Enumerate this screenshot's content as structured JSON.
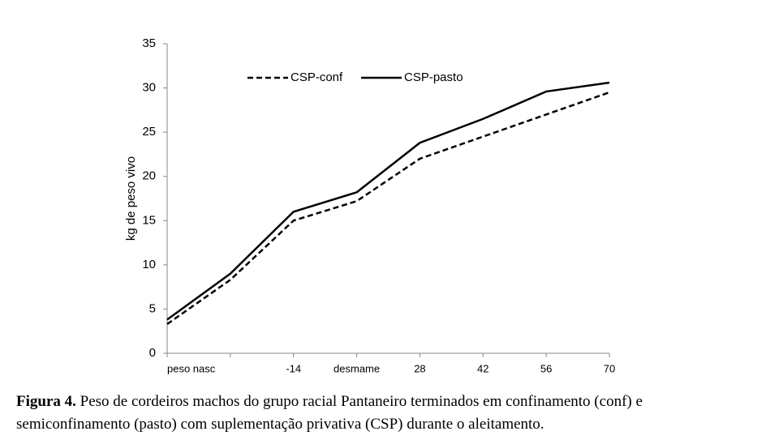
{
  "chart_data": {
    "type": "line",
    "y_label": "kg de peso vivo",
    "categories": [
      "peso nasc",
      null,
      "-14",
      "desmame",
      "28",
      "42",
      "56",
      "70"
    ],
    "series": [
      {
        "name": "CSP-conf",
        "color": "#000000",
        "dash": true,
        "values": [
          3.3,
          8.3,
          15,
          17.2,
          22,
          24.5,
          27,
          29.5
        ]
      },
      {
        "name": "CSP-pasto",
        "color": "#000000",
        "dash": false,
        "values": [
          3.8,
          9,
          16,
          18.2,
          23.8,
          26.5,
          29.6,
          30.6
        ]
      }
    ],
    "ylim": [
      0,
      35
    ],
    "yticks": [
      0,
      5,
      10,
      15,
      20,
      25,
      30,
      35
    ],
    "grid": false
  },
  "caption": {
    "label": "Figura 4.",
    "text": "Peso de cordeiros machos do grupo racial Pantaneiro terminados em confinamento (conf) e semiconfinamento (pasto) com suplementação privativa (CSP) durante o aleitamento."
  }
}
